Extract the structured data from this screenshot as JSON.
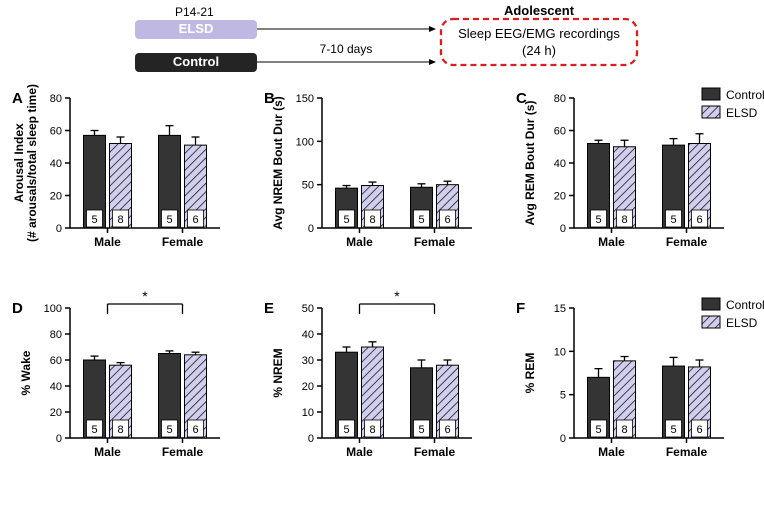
{
  "colors": {
    "control_fill": "#343434",
    "elsd_fill": "#d2cfee",
    "elsd_stripe": "#1a1a1a",
    "elsd_band": "#bfb8e2",
    "control_band": "#242424",
    "dashed_box": "#d81e1e",
    "text": "#000000",
    "axis": "#000000",
    "error_bar": "#000000",
    "bar_border": "#000000",
    "n_box_fill": "#ffffff"
  },
  "top_diagram": {
    "p_label": "P14-21",
    "elsd_label": "ELSD",
    "control_label": "Control",
    "arrow_text": "7-10 days",
    "adolescent": "Adolescent",
    "box_line1": "Sleep EEG/EMG recordings",
    "box_line2": "(24 h)"
  },
  "legend": {
    "control": "Control",
    "elsd": "ELSD"
  },
  "charts": {
    "A": {
      "letter": "A",
      "ylabel_line1": "Arousal Index",
      "ylabel_line2": "(# arousals/total sleep time)",
      "ylim": [
        0,
        80
      ],
      "yticks": [
        0,
        20,
        40,
        60,
        80
      ],
      "cats": [
        "Male",
        "Female"
      ],
      "series": [
        {
          "key": "control",
          "vals": [
            57,
            57
          ],
          "errs": [
            3,
            6
          ],
          "n": [
            5,
            5
          ]
        },
        {
          "key": "elsd",
          "vals": [
            52,
            51
          ],
          "errs": [
            4,
            5
          ],
          "n": [
            8,
            6
          ]
        }
      ]
    },
    "B": {
      "letter": "B",
      "ylabel": "Avg NREM Bout Dur (s)",
      "ylim": [
        0,
        150
      ],
      "yticks": [
        0,
        50,
        100,
        150
      ],
      "cats": [
        "Male",
        "Female"
      ],
      "series": [
        {
          "key": "control",
          "vals": [
            46,
            47
          ],
          "errs": [
            3,
            4
          ],
          "n": [
            5,
            5
          ]
        },
        {
          "key": "elsd",
          "vals": [
            49,
            50
          ],
          "errs": [
            4,
            4
          ],
          "n": [
            8,
            6
          ]
        }
      ]
    },
    "C": {
      "letter": "C",
      "ylabel": "Avg REM Bout Dur (s)",
      "ylim": [
        0,
        80
      ],
      "yticks": [
        0,
        20,
        40,
        60,
        80
      ],
      "cats": [
        "Male",
        "Female"
      ],
      "series": [
        {
          "key": "control",
          "vals": [
            52,
            51
          ],
          "errs": [
            2,
            4
          ],
          "n": [
            5,
            5
          ]
        },
        {
          "key": "elsd",
          "vals": [
            50,
            52
          ],
          "errs": [
            4,
            6
          ],
          "n": [
            8,
            6
          ]
        }
      ]
    },
    "D": {
      "letter": "D",
      "ylabel": "% Wake",
      "ylim": [
        0,
        100
      ],
      "yticks": [
        0,
        20,
        40,
        60,
        80,
        100
      ],
      "cats": [
        "Male",
        "Female"
      ],
      "series": [
        {
          "key": "control",
          "vals": [
            60,
            65
          ],
          "errs": [
            3,
            2
          ],
          "n": [
            5,
            5
          ]
        },
        {
          "key": "elsd",
          "vals": [
            56,
            64
          ],
          "errs": [
            2,
            2
          ],
          "n": [
            8,
            6
          ]
        }
      ],
      "sig": true
    },
    "E": {
      "letter": "E",
      "ylabel": "% NREM",
      "ylim": [
        0,
        50
      ],
      "yticks": [
        0,
        10,
        20,
        30,
        40,
        50
      ],
      "cats": [
        "Male",
        "Female"
      ],
      "series": [
        {
          "key": "control",
          "vals": [
            33,
            27
          ],
          "errs": [
            2,
            3
          ],
          "n": [
            5,
            5
          ]
        },
        {
          "key": "elsd",
          "vals": [
            35,
            28
          ],
          "errs": [
            2,
            2
          ],
          "n": [
            8,
            6
          ]
        }
      ],
      "sig": true
    },
    "F": {
      "letter": "F",
      "ylabel": "% REM",
      "ylim": [
        0,
        15
      ],
      "yticks": [
        0,
        5,
        10,
        15
      ],
      "cats": [
        "Male",
        "Female"
      ],
      "series": [
        {
          "key": "control",
          "vals": [
            7,
            8.3
          ],
          "errs": [
            1,
            1
          ],
          "n": [
            5,
            5
          ]
        },
        {
          "key": "elsd",
          "vals": [
            8.9,
            8.2
          ],
          "errs": [
            0.5,
            0.8
          ],
          "n": [
            8,
            6
          ]
        }
      ]
    }
  },
  "font": {
    "panel_letter_size": 15,
    "panel_letter_weight": "bold",
    "axis_label_size": 12,
    "tick_label_size": 11,
    "cat_label_size": 12,
    "n_label_size": 11,
    "legend_size": 12,
    "diagram_size": 13
  }
}
